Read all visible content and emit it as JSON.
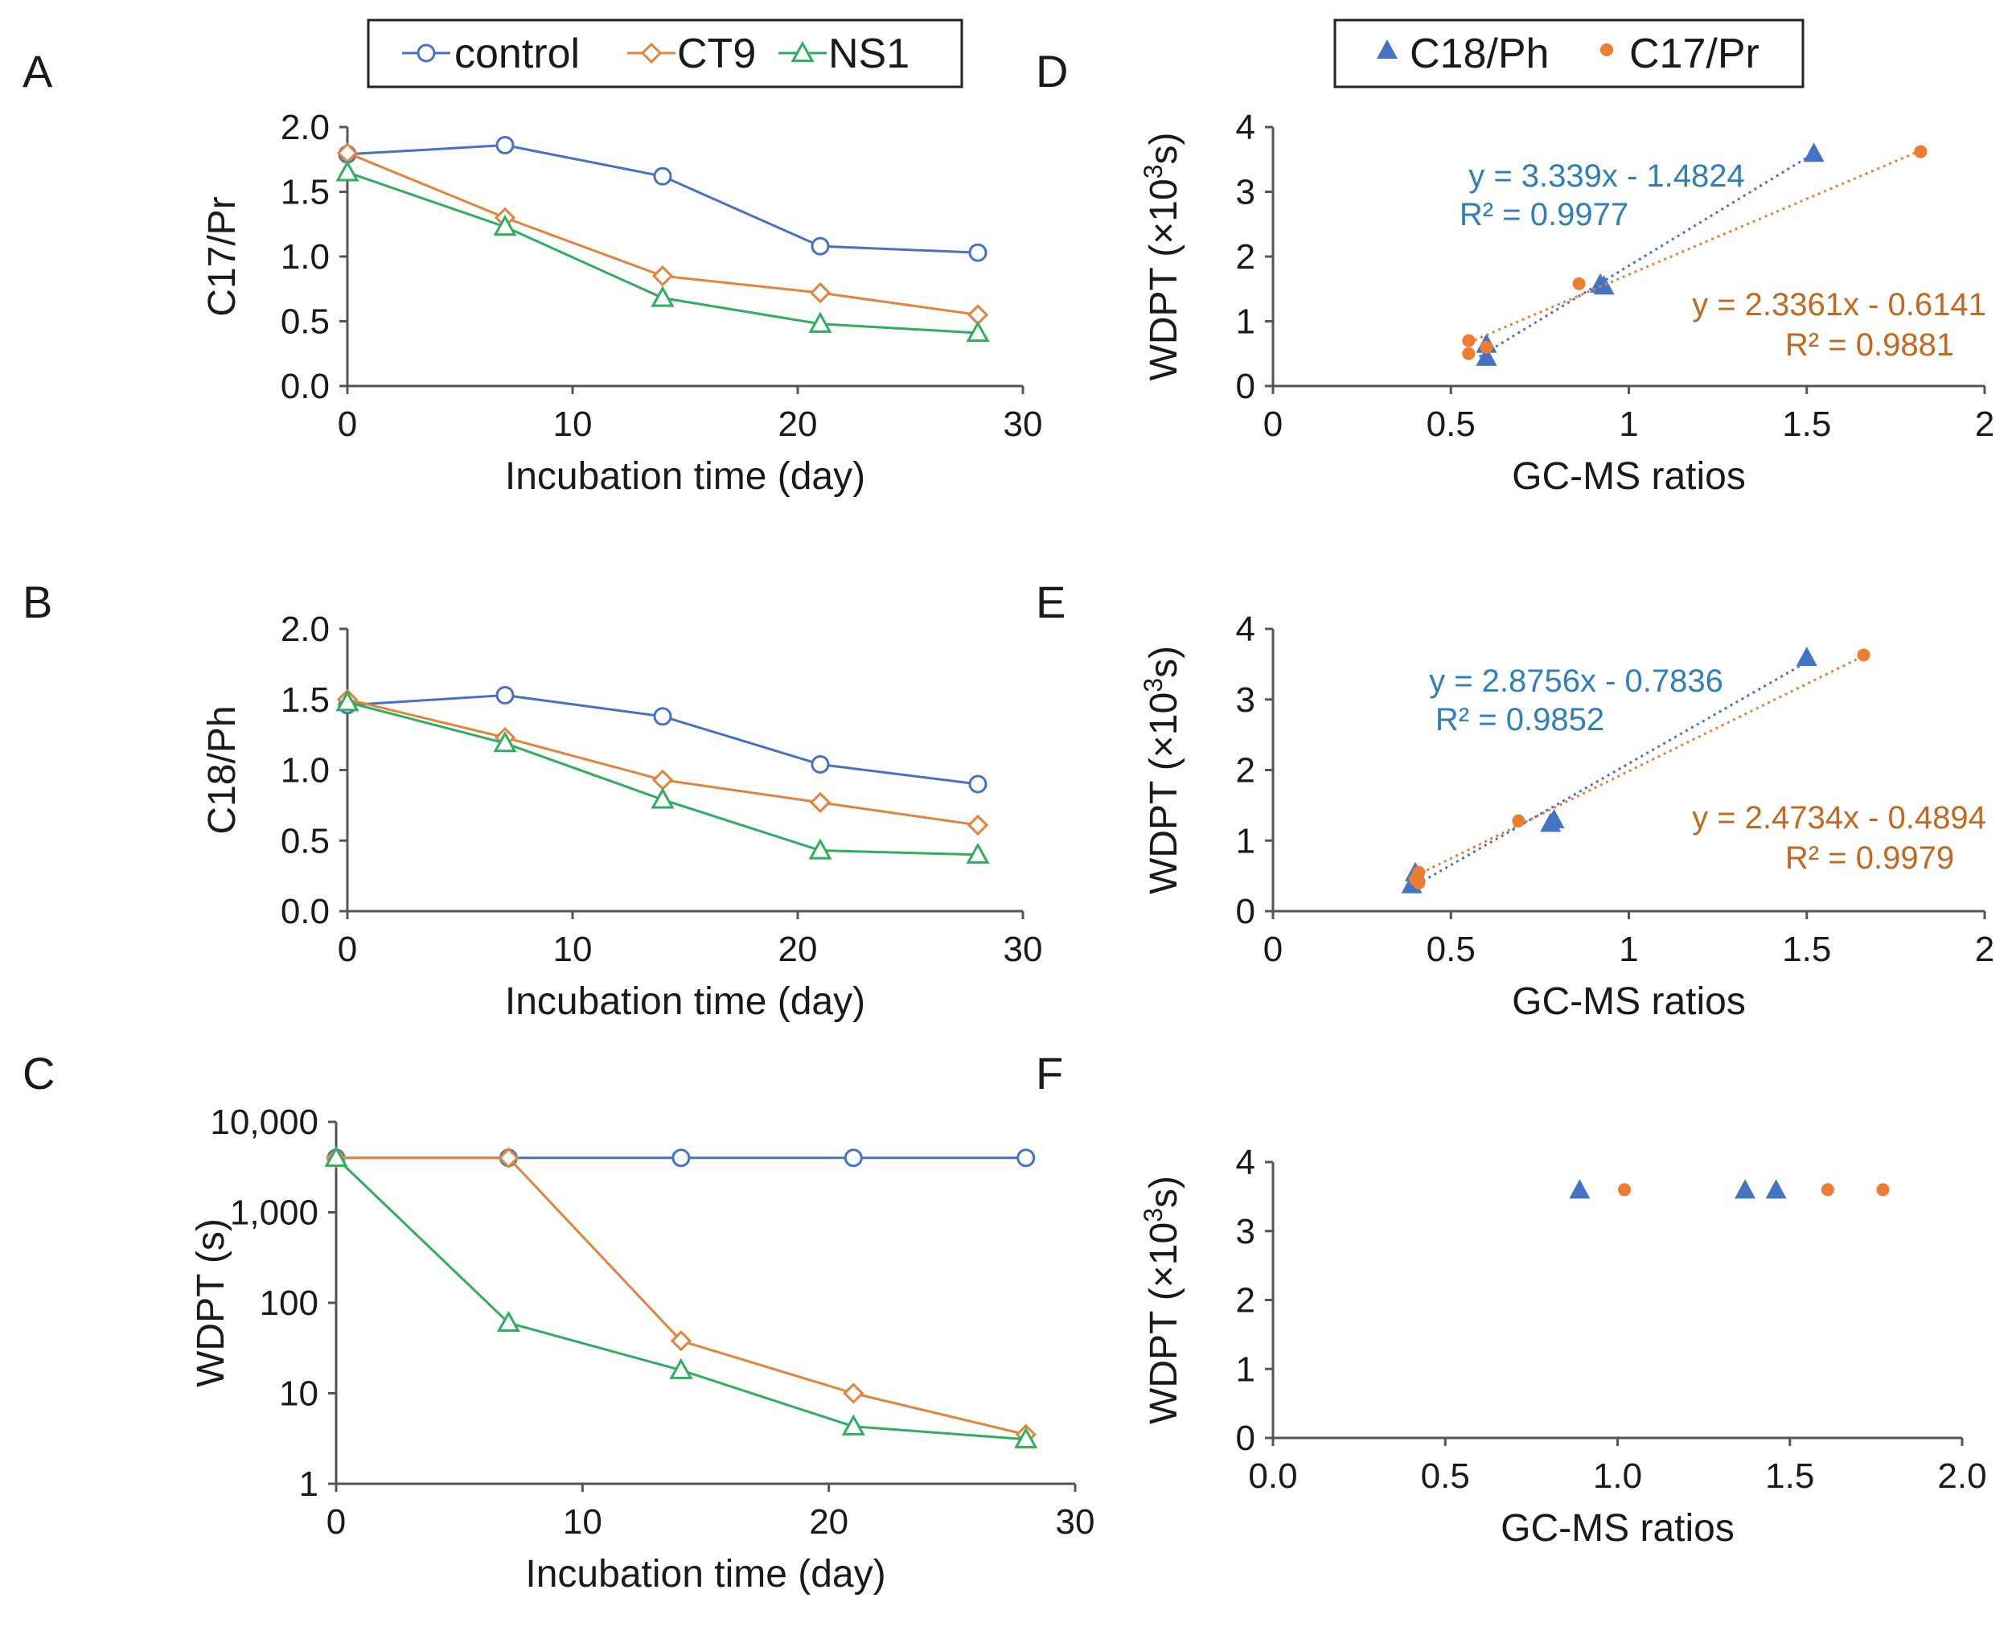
{
  "colors": {
    "control": "#4472C4",
    "CT9": "#E3843A",
    "NS1": "#2EAE5F",
    "C18Ph": "#4472C4",
    "C17Pr": "#ED7D31",
    "eq_blue": "#2F7FB8",
    "eq_orange": "#C4681E"
  },
  "legend_left": {
    "entries": [
      "control",
      "CT9",
      "NS1"
    ]
  },
  "legend_right": {
    "entries": [
      "C18/Ph",
      "C17/Pr"
    ]
  },
  "chart_data": [
    {
      "panel": "A",
      "type": "line",
      "xlabel": "Incubation time (day)",
      "ylabel": "C17/Pr",
      "xlim": [
        0,
        30
      ],
      "ylim": [
        0,
        2
      ],
      "xticks": [
        "0",
        "10",
        "20",
        "30"
      ],
      "yticks": [
        "0.0",
        "0.5",
        "1.0",
        "1.5",
        "2.0"
      ],
      "x": [
        0,
        7,
        14,
        21,
        28
      ],
      "series": [
        {
          "name": "control",
          "values": [
            1.79,
            1.86,
            1.62,
            1.08,
            1.03
          ]
        },
        {
          "name": "CT9",
          "values": [
            1.8,
            1.3,
            0.85,
            0.72,
            0.55
          ]
        },
        {
          "name": "NS1",
          "values": [
            1.65,
            1.23,
            0.68,
            0.48,
            0.41
          ]
        }
      ]
    },
    {
      "panel": "B",
      "type": "line",
      "xlabel": "Incubation time (day)",
      "ylabel": "C18/Ph",
      "xlim": [
        0,
        30
      ],
      "ylim": [
        0,
        2
      ],
      "xticks": [
        "0",
        "10",
        "20",
        "30"
      ],
      "yticks": [
        "0.0",
        "0.5",
        "1.0",
        "1.5",
        "2.0"
      ],
      "x": [
        0,
        7,
        14,
        21,
        28
      ],
      "series": [
        {
          "name": "control",
          "values": [
            1.46,
            1.53,
            1.38,
            1.04,
            0.9
          ]
        },
        {
          "name": "CT9",
          "values": [
            1.5,
            1.23,
            0.93,
            0.77,
            0.61
          ]
        },
        {
          "name": "NS1",
          "values": [
            1.48,
            1.19,
            0.79,
            0.43,
            0.4
          ]
        }
      ]
    },
    {
      "panel": "C",
      "type": "line",
      "yscale": "log",
      "xlabel": "Incubation time (day)",
      "ylabel": "WDPT (s)",
      "xlim": [
        0,
        30
      ],
      "ylim": [
        1,
        10000
      ],
      "xticks": [
        "0",
        "10",
        "20",
        "30"
      ],
      "yticks": [
        "1",
        "10",
        "100",
        "1,000",
        "10,000"
      ],
      "x": [
        0,
        7,
        14,
        21,
        28
      ],
      "series": [
        {
          "name": "control",
          "values": [
            4000,
            4000,
            4000,
            4000,
            4000
          ]
        },
        {
          "name": "CT9",
          "values": [
            4000,
            4000,
            38,
            10,
            3.5
          ]
        },
        {
          "name": "NS1",
          "values": [
            4000,
            60,
            18,
            4.3,
            3.1
          ]
        }
      ]
    },
    {
      "panel": "D",
      "type": "scatter",
      "xlabel": "GC-MS ratios",
      "ylabel": "WDPT (",
      "ylabel_unit": "×10",
      "ylabel_sup": "3",
      "ylabel_end": "s)",
      "xlim": [
        0,
        2
      ],
      "ylim": [
        0,
        4
      ],
      "xticks": [
        "0",
        "0.5",
        "1",
        "1.5",
        "2"
      ],
      "yticks": [
        "0",
        "1",
        "2",
        "3",
        "4"
      ],
      "series": [
        {
          "name": "C18/Ph",
          "x": [
            0.6,
            0.6,
            0.93,
            0.92,
            1.52
          ],
          "y": [
            0.45,
            0.65,
            1.55,
            1.58,
            3.6
          ],
          "trend": {
            "slope": 3.339,
            "intercept": -1.4824,
            "x_range": [
              0.58,
              1.52
            ]
          },
          "equation": "y = 3.339x - 1.4824",
          "r2": "R² = 0.9977"
        },
        {
          "name": "C17/Pr",
          "x": [
            0.55,
            0.55,
            0.86,
            1.82,
            0.6
          ],
          "y": [
            0.5,
            0.7,
            1.58,
            3.62,
            0.6
          ],
          "trend": {
            "slope": 2.3361,
            "intercept": -0.6141,
            "x_range": [
              0.55,
              1.82
            ]
          },
          "equation": "y = 2.3361x - 0.6141",
          "r2": "R² = 0.9881"
        }
      ]
    },
    {
      "panel": "E",
      "type": "scatter",
      "xlabel": "GC-MS ratios",
      "ylabel": "WDPT (",
      "ylabel_unit": "×10",
      "ylabel_sup": "3",
      "ylabel_end": "s)",
      "xlim": [
        0,
        2
      ],
      "ylim": [
        0,
        4
      ],
      "xticks": [
        "0",
        "0.5",
        "1",
        "1.5",
        "2"
      ],
      "yticks": [
        "0",
        "1",
        "2",
        "3",
        "4"
      ],
      "series": [
        {
          "name": "C18/Ph",
          "x": [
            0.39,
            0.4,
            0.78,
            0.79,
            1.5
          ],
          "y": [
            0.38,
            0.55,
            1.25,
            1.3,
            3.6
          ],
          "trend": {
            "slope": 2.8756,
            "intercept": -0.7836,
            "x_range": [
              0.39,
              1.5
            ]
          },
          "equation": "y = 2.8756x - 0.7836",
          "r2": "R² = 0.9852"
        },
        {
          "name": "C17/Pr",
          "x": [
            0.41,
            0.41,
            0.69,
            1.66,
            0.4
          ],
          "y": [
            0.4,
            0.55,
            1.28,
            3.63,
            0.45
          ],
          "trend": {
            "slope": 2.4734,
            "intercept": -0.4894,
            "x_range": [
              0.4,
              1.66
            ]
          },
          "equation": "y = 2.4734x - 0.4894",
          "r2": "R² = 0.9979"
        }
      ]
    },
    {
      "panel": "F",
      "type": "scatter",
      "xlabel": "GC-MS ratios",
      "ylabel": "WDPT (",
      "ylabel_unit": "×10",
      "ylabel_sup": "3",
      "ylabel_end": "s)",
      "xlim": [
        0,
        2
      ],
      "ylim": [
        0,
        4
      ],
      "xticks": [
        "0.0",
        "0.5",
        "1.0",
        "1.5",
        "2.0"
      ],
      "yticks": [
        "0",
        "1",
        "2",
        "3",
        "4"
      ],
      "series": [
        {
          "name": "C18/Ph",
          "x": [
            0.89,
            1.37,
            1.46
          ],
          "y": [
            3.6,
            3.6,
            3.6
          ]
        },
        {
          "name": "C17/Pr",
          "x": [
            1.02,
            1.61,
            1.77
          ],
          "y": [
            3.6,
            3.6,
            3.6
          ]
        }
      ]
    }
  ]
}
